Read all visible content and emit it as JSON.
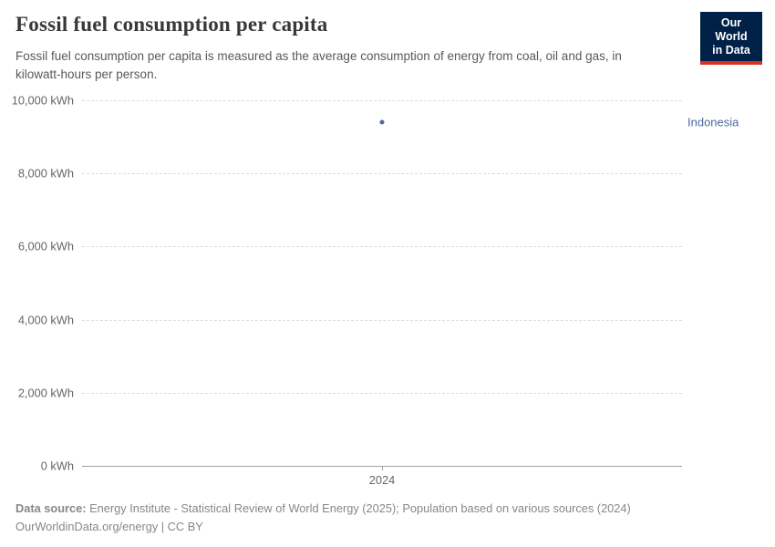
{
  "header": {
    "title": "Fossil fuel consumption per capita",
    "subtitle": "Fossil fuel consumption per capita is measured as the average consumption of energy from coal, oil and gas, in kilowatt-hours per person.",
    "logo": {
      "line1": "Our World",
      "line2": "in Data"
    }
  },
  "chart_data": {
    "type": "scatter",
    "title": "Fossil fuel consumption per capita",
    "xlabel": "",
    "ylabel": "kWh per person",
    "x": [
      2024
    ],
    "series": [
      {
        "name": "Indonesia",
        "values": [
          9400
        ],
        "color": "#4c6a9c"
      }
    ],
    "ylim": [
      0,
      10000
    ],
    "yticks": [
      {
        "value": 0,
        "label": "0 kWh"
      },
      {
        "value": 2000,
        "label": "2,000 kWh"
      },
      {
        "value": 4000,
        "label": "4,000 kWh"
      },
      {
        "value": 6000,
        "label": "6,000 kWh"
      },
      {
        "value": 8000,
        "label": "8,000 kWh"
      },
      {
        "value": 10000,
        "label": "10,000 kWh"
      }
    ],
    "xticks": [
      {
        "value": 2024,
        "label": "2024"
      }
    ],
    "grid": "horizontal-dashed",
    "legend_position": "right-of-point"
  },
  "footer": {
    "source_label": "Data source:",
    "source_text": "Energy Institute - Statistical Review of World Energy (2025); Population based on various sources (2024)",
    "note": "OurWorldinData.org/energy | CC BY"
  },
  "colors": {
    "accent": "#4c6a9c",
    "title": "#383838",
    "subtitle": "#595959",
    "axis_text": "#666666",
    "gridline": "#dddddd",
    "axis_line": "#a3a3a3",
    "footer_text": "#878787",
    "logo_bg": "#002147",
    "logo_red": "#d93025"
  }
}
